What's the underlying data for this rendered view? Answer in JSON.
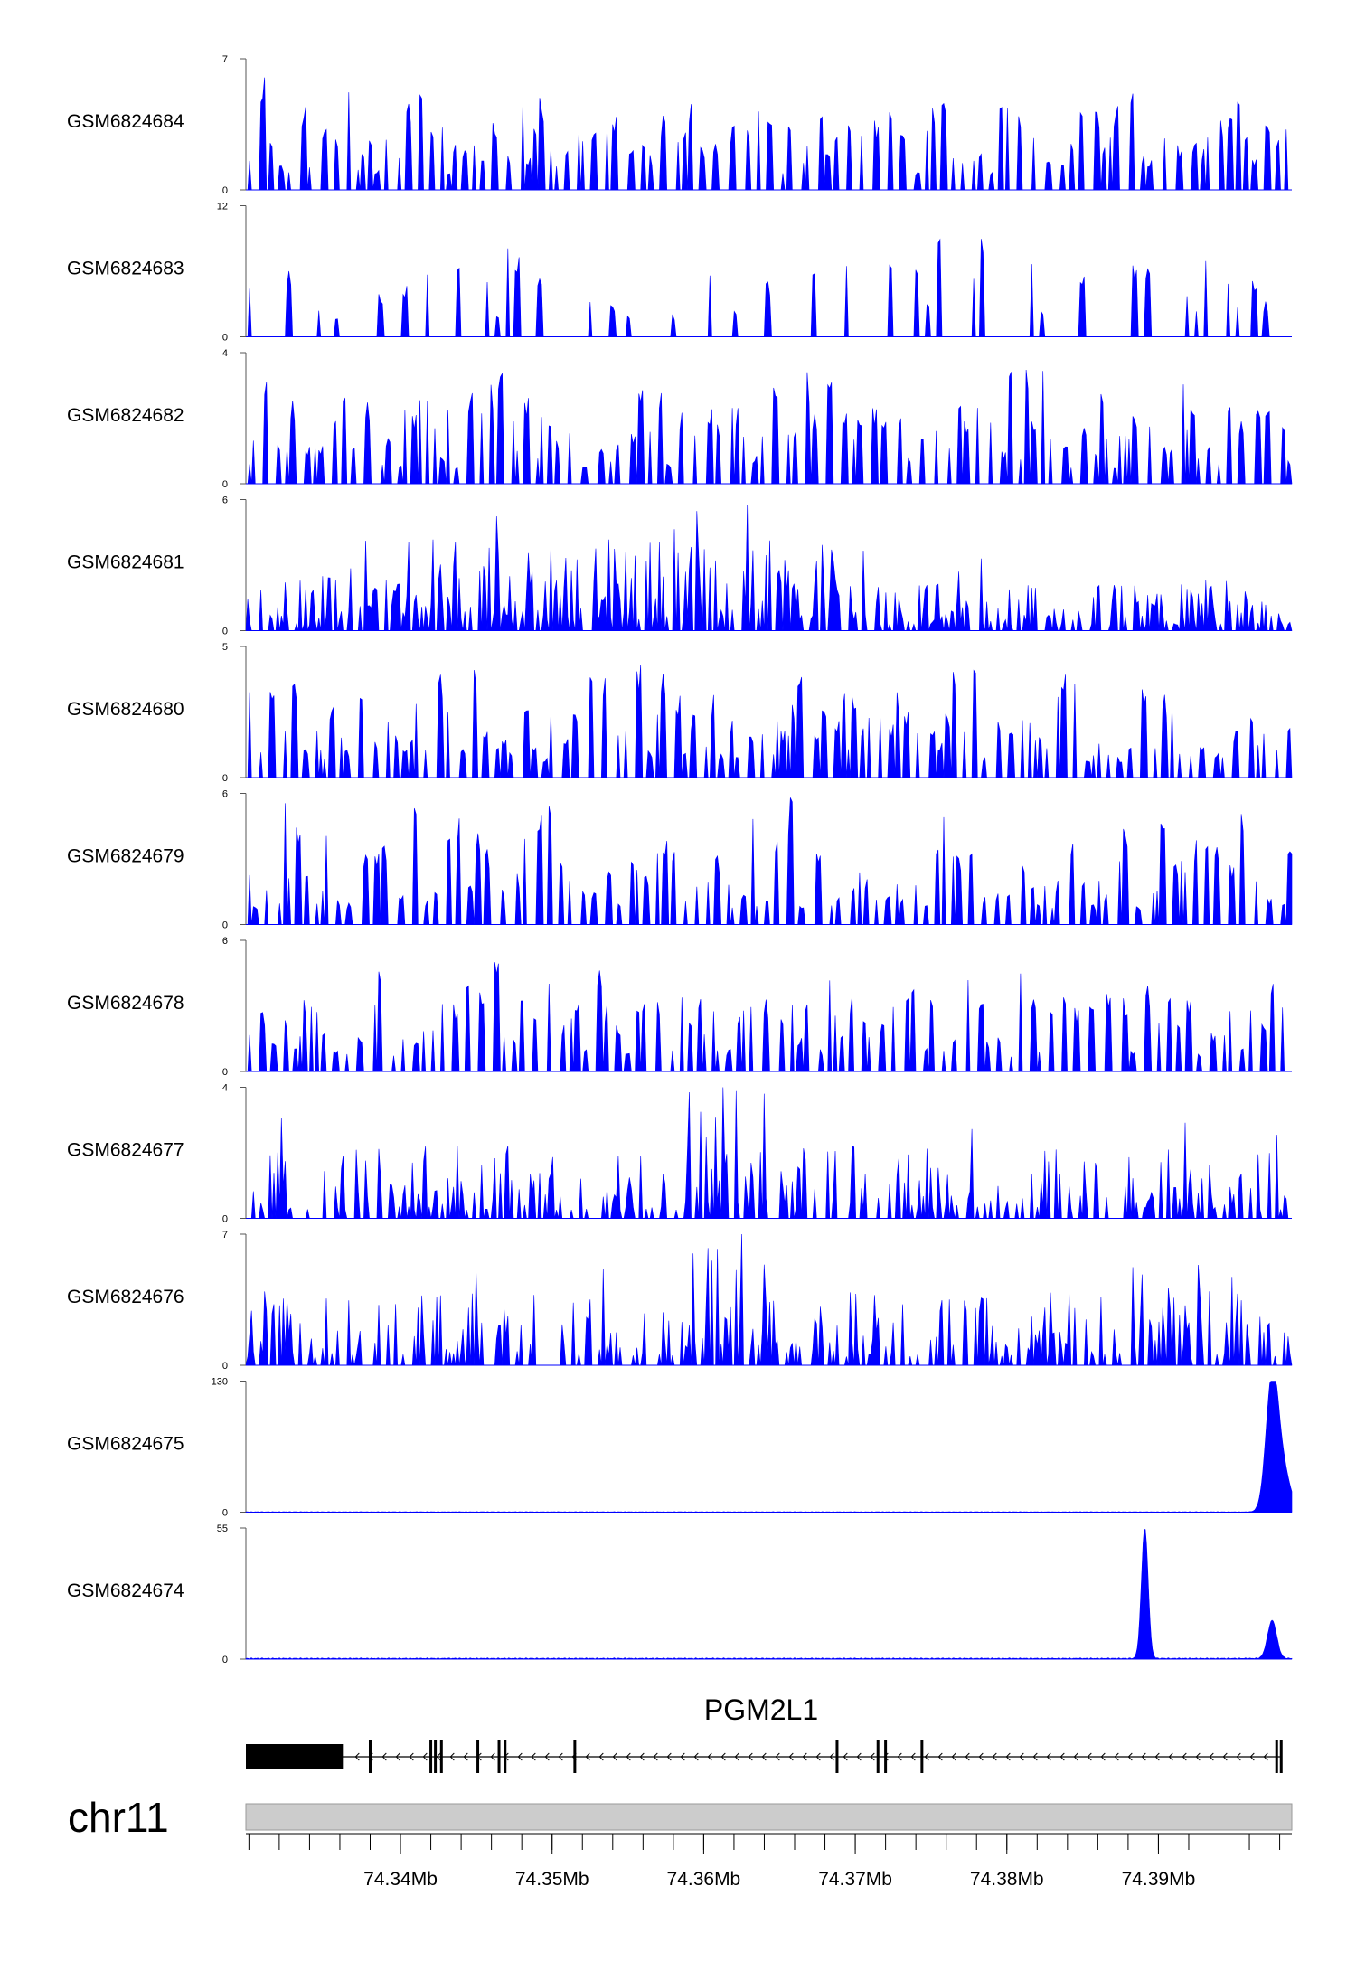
{
  "chart_data": {
    "type": "area",
    "title": "",
    "chromosome": "chr11",
    "genomic_range_mb": [
      74.3298,
      74.3988
    ],
    "x_ticks_mb": [
      74.34,
      74.35,
      74.36,
      74.37,
      74.38,
      74.39
    ],
    "x_tick_labels": [
      "74.34Mb",
      "74.35Mb",
      "74.36Mb",
      "74.37Mb",
      "74.38Mb",
      "74.39Mb"
    ],
    "minor_tick_step_mb": 0.002,
    "tracks": [
      {
        "name": "GSM6824684",
        "ymin": "0",
        "ymax": "7",
        "max": 7,
        "color": "#0000ff",
        "pattern": "sparse",
        "seed": 11
      },
      {
        "name": "GSM6824683",
        "ymin": "0",
        "ymax": "12",
        "max": 12,
        "color": "#0000ff",
        "pattern": "very-sparse",
        "seed": 23
      },
      {
        "name": "GSM6824682",
        "ymin": "0",
        "ymax": "4",
        "max": 4,
        "color": "#0000ff",
        "pattern": "sparse",
        "seed": 37
      },
      {
        "name": "GSM6824681",
        "ymin": "0",
        "ymax": "6",
        "max": 6,
        "color": "#0000ff",
        "pattern": "dense",
        "seed": 41
      },
      {
        "name": "GSM6824680",
        "ymin": "0",
        "ymax": "5",
        "max": 5,
        "color": "#0000ff",
        "pattern": "sparse",
        "seed": 53
      },
      {
        "name": "GSM6824679",
        "ymin": "0",
        "ymax": "6",
        "max": 6,
        "color": "#0000ff",
        "pattern": "sparse",
        "seed": 67
      },
      {
        "name": "GSM6824678",
        "ymin": "0",
        "ymax": "6",
        "max": 6,
        "color": "#0000ff",
        "pattern": "sparse",
        "seed": 71
      },
      {
        "name": "GSM6824677",
        "ymin": "0",
        "ymax": "4",
        "max": 4,
        "color": "#0000ff",
        "pattern": "medium",
        "seed": 83
      },
      {
        "name": "GSM6824676",
        "ymin": "0",
        "ymax": "7",
        "max": 7,
        "color": "#0000ff",
        "pattern": "medium",
        "seed": 97
      },
      {
        "name": "GSM6824675",
        "ymin": "0",
        "ymax": "130",
        "max": 130,
        "color": "#0000ff",
        "pattern": "peaks",
        "peaks": [
          {
            "pos_mb": 74.3975,
            "height": 128,
            "width_mb": 0.0004
          },
          {
            "pos_mb": 74.3982,
            "height": 40,
            "width_mb": 0.0005
          }
        ]
      },
      {
        "name": "GSM6824674",
        "ymin": "0",
        "ymax": "55",
        "max": 55,
        "color": "#0000ff",
        "pattern": "peaks",
        "peaks": [
          {
            "pos_mb": 74.3891,
            "height": 55,
            "width_mb": 0.00022
          },
          {
            "pos_mb": 74.3975,
            "height": 16,
            "width_mb": 0.0003
          }
        ]
      }
    ],
    "gene": {
      "name": "PGM2L1",
      "strand": "-",
      "start_mb": 74.3298,
      "end_mb": 74.3981,
      "thick_block_mb": [
        74.3298,
        74.3362
      ],
      "exons_mb": [
        74.338,
        74.342,
        74.3423,
        74.3427,
        74.3451,
        74.3465,
        74.3469,
        74.3515,
        74.3688,
        74.3715,
        74.372,
        74.3744,
        74.3978,
        74.3981
      ]
    }
  }
}
